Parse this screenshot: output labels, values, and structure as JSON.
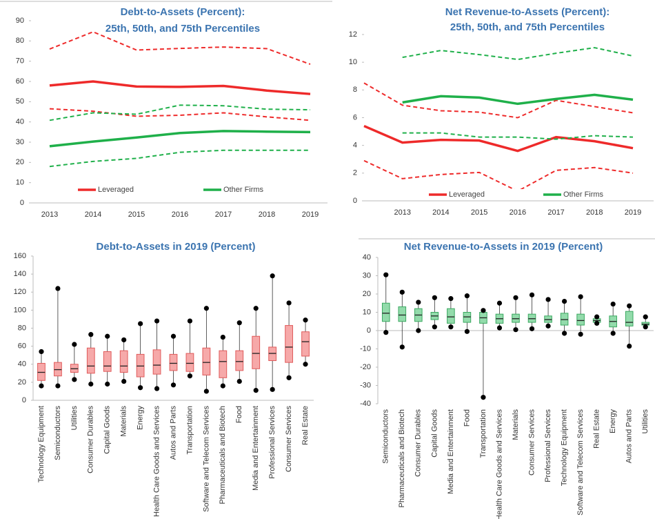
{
  "chart_data": [
    {
      "type": "line",
      "title": "Debt-to-Assets (Percent):",
      "subtitle": "25th, 50th, and 75th Percentiles",
      "categories": [
        "2013",
        "2014",
        "2015",
        "2016",
        "2017",
        "2018",
        "2019"
      ],
      "ylim": [
        0,
        90
      ],
      "yticks": [
        0,
        10,
        20,
        30,
        40,
        50,
        60,
        70,
        80,
        90
      ],
      "series": [
        {
          "name": "Leveraged",
          "color": "#ee2a2a",
          "values": [
            58,
            60,
            57.5,
            57.3,
            57.8,
            55.5,
            53.8
          ],
          "p75": [
            76,
            84.5,
            75.5,
            76.3,
            77,
            76.2,
            68.5
          ],
          "p25": [
            46.5,
            45.3,
            42.8,
            43.3,
            44.5,
            42.5,
            40.8
          ]
        },
        {
          "name": "Other Firms",
          "color": "#1fb04a",
          "values": [
            28,
            30.3,
            32.3,
            34.5,
            35.5,
            35.2,
            35
          ],
          "p75": [
            40.8,
            44.5,
            43.8,
            48.3,
            48,
            46.3,
            46
          ],
          "p25": [
            18,
            20.5,
            22,
            25,
            26,
            26,
            26
          ]
        }
      ]
    },
    {
      "type": "line",
      "title": "Net Revenue-to-Assets (Percent):",
      "subtitle": "25th, 50th, and 75th Percentiles",
      "categories": [
        null,
        "2013",
        "2014",
        "2015",
        "2016",
        "2017",
        "2018",
        "2019"
      ],
      "ylim": [
        0,
        12
      ],
      "yticks": [
        0,
        2,
        4,
        6,
        8,
        10,
        12
      ],
      "series": [
        {
          "name": "Leveraged",
          "color": "#ee2a2a",
          "values": [
            5.4,
            4.2,
            4.4,
            4.35,
            3.6,
            4.6,
            4.3,
            3.8
          ],
          "p75": [
            8.5,
            6.9,
            6.5,
            6.4,
            6.0,
            7.25,
            6.8,
            6.35
          ],
          "p25": [
            2.9,
            1.6,
            1.9,
            2.05,
            0.7,
            2.2,
            2.4,
            2.0
          ]
        },
        {
          "name": "Other Firms",
          "color": "#1fb04a",
          "values": [
            null,
            7.1,
            7.55,
            7.45,
            7.0,
            7.35,
            7.65,
            7.3
          ],
          "p75": [
            null,
            10.35,
            10.85,
            10.55,
            10.2,
            10.65,
            11.05,
            10.45
          ],
          "p25": [
            null,
            4.9,
            4.9,
            4.6,
            4.6,
            4.45,
            4.7,
            4.6
          ]
        }
      ]
    },
    {
      "type": "box",
      "title": "Debt-to-Assets in 2019 (Percent)",
      "color": "#f6a9a9",
      "edge_color": "#e05a5a",
      "ylim": [
        0,
        160
      ],
      "yticks": [
        0,
        20,
        40,
        60,
        80,
        100,
        120,
        140,
        160
      ],
      "categories": [
        "Technology Equipment",
        "Semiconductors",
        "Utilities",
        "Consumer Durables",
        "Capital Goods",
        "Materials",
        "Energy",
        "Health Care Goods and Services",
        "Autos and Parts",
        "Transportation",
        "Software and Telecom Services",
        "Pharmaceuticals and Biotech",
        "Food",
        "Media and Entertainment",
        "Professional Services",
        "Consumer Services",
        "Real Estate"
      ],
      "min": [
        16,
        16,
        23,
        18,
        18,
        21,
        14,
        13,
        17,
        27,
        10,
        16,
        21,
        11,
        12,
        25,
        40
      ],
      "q1": [
        22,
        27,
        31,
        30,
        32,
        31,
        26,
        29,
        33,
        32,
        28,
        25,
        33,
        35,
        44,
        42,
        49
      ],
      "median": [
        31,
        34,
        35,
        38,
        38,
        38,
        38,
        39,
        41,
        41,
        42,
        43,
        43,
        52,
        52,
        59,
        65
      ],
      "q3": [
        41,
        42,
        40,
        58,
        54,
        55,
        51,
        56,
        51,
        52,
        58,
        55,
        55,
        71,
        59,
        83,
        76
      ],
      "max": [
        54,
        124,
        62,
        73,
        71,
        67,
        85,
        88,
        71,
        88,
        102,
        70,
        86,
        102,
        138,
        108,
        89
      ]
    },
    {
      "type": "box",
      "title": "Net Revenue-to-Assets in 2019 (Percent)",
      "color": "#93dbab",
      "edge_color": "#3aa860",
      "ylim": [
        -40,
        40
      ],
      "yticks": [
        -40,
        -30,
        -20,
        -10,
        0,
        10,
        20,
        30,
        40
      ],
      "categories": [
        "Semiconductors",
        "Pharmaceuticals and Biotech",
        "Consumer Durables",
        "Capital Goods",
        "Media and Entertainment",
        "Food",
        "Transportation",
        "Health Care Goods and Services",
        "Materials",
        "Consumer Services",
        "Professional Services",
        "Technology Equipment",
        "Software and Telecom Services",
        "Real Estate",
        "Energy",
        "Autos and Parts",
        "Utilities"
      ],
      "min": [
        -1,
        -9,
        0,
        2,
        2,
        -0.5,
        -36.5,
        1.5,
        0.5,
        1,
        2.5,
        -1.5,
        -2,
        4,
        -1.5,
        -8.5,
        2
      ],
      "q1": [
        5,
        5,
        5,
        6,
        4,
        4.5,
        4,
        4,
        4.5,
        4.5,
        4.5,
        3,
        3,
        4.5,
        2,
        2.5,
        3
      ],
      "median": [
        9.5,
        8.5,
        8.5,
        8,
        7.5,
        7.5,
        7,
        6.5,
        6.5,
        6.5,
        6,
        6,
        5.5,
        5.5,
        5,
        4.5,
        3.5
      ],
      "q3": [
        15,
        13,
        12,
        10,
        12,
        10,
        10,
        9,
        9,
        9,
        8,
        9.5,
        9,
        6.5,
        8,
        10.5,
        4.5
      ],
      "max": [
        30.5,
        21,
        15.5,
        18,
        17.5,
        19,
        11,
        15,
        18,
        19.5,
        17,
        16,
        18.5,
        7.5,
        14.5,
        13.5,
        7.5
      ]
    }
  ]
}
